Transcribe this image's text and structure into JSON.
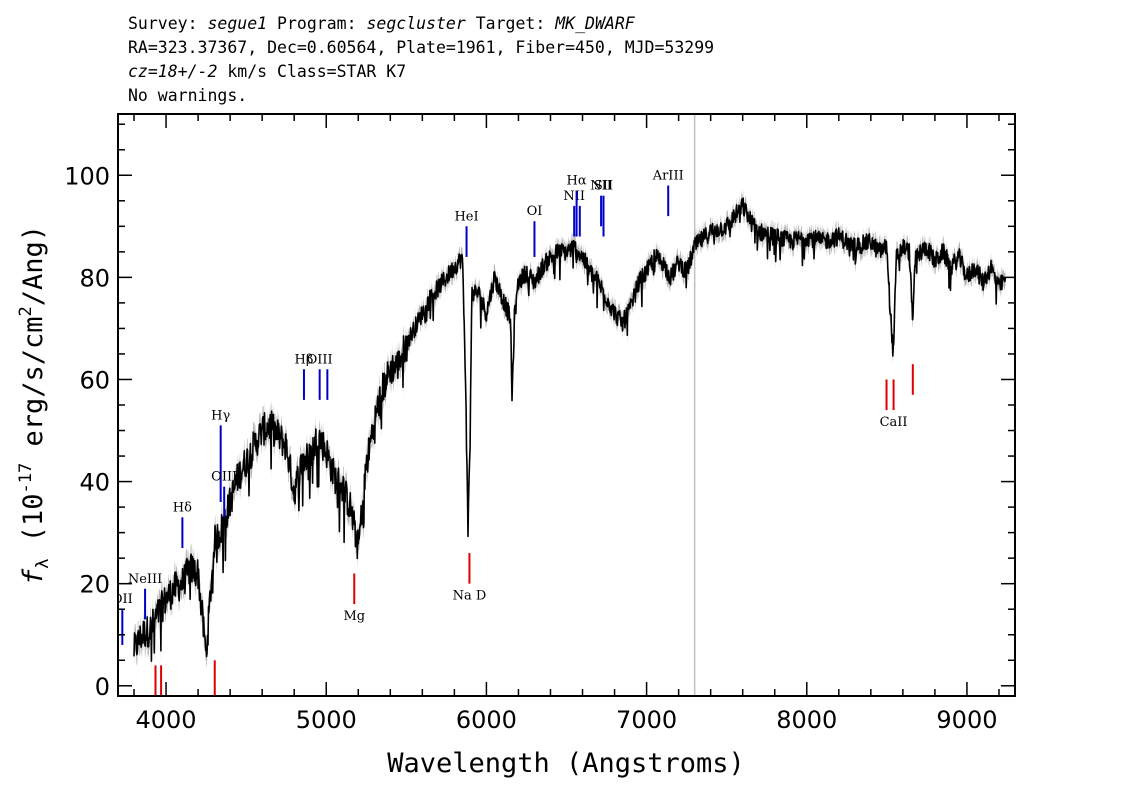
{
  "header": {
    "survey_key": "Survey:",
    "survey_value": "segue1",
    "program_key": "Program:",
    "program_value": "segcluster",
    "target_key": "Target:",
    "target_value": "MK_DWARF",
    "line2": "RA=323.37367, Dec=0.60564, Plate=1961, Fiber=450, MJD=53299",
    "cz_value": "cz=18+/-2",
    "cz_rest": " km/s Class=STAR K7",
    "line4": "No warnings."
  },
  "chart_data": {
    "type": "line",
    "xlabel": "Wavelength (Angstroms)",
    "ylabel_parts": [
      "f",
      "λ",
      " (10",
      "-17",
      " erg/s/cm",
      "2",
      "/Ang)"
    ],
    "xlim": [
      3700,
      9300
    ],
    "ylim": [
      -2,
      112
    ],
    "x_ticks": [
      4000,
      5000,
      6000,
      7000,
      8000,
      9000
    ],
    "y_ticks": [
      0,
      20,
      40,
      60,
      80,
      100
    ],
    "series_color": "#000000",
    "error_color": "#b4b4b4",
    "spectrum": [
      [
        3800,
        7
      ],
      [
        3850,
        10
      ],
      [
        3900,
        11
      ],
      [
        3950,
        14
      ],
      [
        4000,
        17
      ],
      [
        4050,
        19
      ],
      [
        4100,
        20
      ],
      [
        4150,
        23
      ],
      [
        4200,
        22
      ],
      [
        4250,
        6
      ],
      [
        4300,
        28
      ],
      [
        4350,
        31
      ],
      [
        4400,
        36
      ],
      [
        4450,
        41
      ],
      [
        4500,
        44
      ],
      [
        4550,
        47
      ],
      [
        4600,
        50
      ],
      [
        4650,
        51
      ],
      [
        4700,
        49
      ],
      [
        4750,
        47
      ],
      [
        4800,
        38
      ],
      [
        4850,
        44
      ],
      [
        4900,
        45
      ],
      [
        4950,
        49
      ],
      [
        5000,
        46
      ],
      [
        5050,
        41
      ],
      [
        5100,
        39
      ],
      [
        5150,
        35
      ],
      [
        5200,
        27
      ],
      [
        5250,
        43
      ],
      [
        5300,
        52
      ],
      [
        5350,
        58
      ],
      [
        5400,
        62
      ],
      [
        5450,
        63
      ],
      [
        5500,
        67
      ],
      [
        5550,
        70
      ],
      [
        5600,
        73
      ],
      [
        5650,
        76
      ],
      [
        5700,
        78
      ],
      [
        5750,
        80
      ],
      [
        5800,
        82
      ],
      [
        5850,
        84
      ],
      [
        5870,
        60
      ],
      [
        5885,
        30
      ],
      [
        5895,
        45
      ],
      [
        5910,
        77
      ],
      [
        5950,
        77
      ],
      [
        6000,
        73
      ],
      [
        6050,
        80
      ],
      [
        6100,
        76
      ],
      [
        6150,
        72
      ],
      [
        6160,
        56
      ],
      [
        6175,
        72
      ],
      [
        6200,
        79
      ],
      [
        6250,
        81
      ],
      [
        6300,
        79
      ],
      [
        6350,
        82
      ],
      [
        6400,
        84
      ],
      [
        6450,
        85
      ],
      [
        6500,
        85
      ],
      [
        6550,
        86
      ],
      [
        6600,
        84
      ],
      [
        6650,
        81
      ],
      [
        6700,
        79
      ],
      [
        6750,
        76
      ],
      [
        6800,
        73
      ],
      [
        6850,
        71
      ],
      [
        6900,
        74
      ],
      [
        6950,
        79
      ],
      [
        7000,
        81
      ],
      [
        7050,
        84
      ],
      [
        7100,
        83
      ],
      [
        7150,
        80
      ],
      [
        7200,
        83
      ],
      [
        7250,
        81
      ],
      [
        7300,
        86
      ],
      [
        7400,
        89
      ],
      [
        7500,
        90
      ],
      [
        7550,
        92
      ],
      [
        7600,
        94
      ],
      [
        7650,
        91
      ],
      [
        7700,
        89
      ],
      [
        7800,
        88
      ],
      [
        7900,
        87
      ],
      [
        8000,
        88
      ],
      [
        8100,
        87
      ],
      [
        8200,
        88
      ],
      [
        8300,
        86
      ],
      [
        8400,
        87
      ],
      [
        8450,
        85
      ],
      [
        8500,
        86
      ],
      [
        8520,
        74
      ],
      [
        8540,
        65
      ],
      [
        8560,
        84
      ],
      [
        8600,
        86
      ],
      [
        8640,
        85
      ],
      [
        8660,
        72
      ],
      [
        8680,
        84
      ],
      [
        8750,
        86
      ],
      [
        8800,
        83
      ],
      [
        8850,
        85
      ],
      [
        8900,
        82
      ],
      [
        8950,
        84
      ],
      [
        9000,
        80
      ],
      [
        9050,
        82
      ],
      [
        9100,
        79
      ],
      [
        9150,
        82
      ],
      [
        9200,
        78
      ],
      [
        9240,
        80
      ]
    ],
    "gap_line_x": 7300,
    "gap_line_color": "#c0c0c0",
    "emission_lines": [
      {
        "label": "OII",
        "x": 3727,
        "y0": 8,
        "y1": 15
      },
      {
        "label": "NeIII",
        "x": 3869,
        "y0": 13,
        "y1": 19
      },
      {
        "label": "Hδ",
        "x": 4102,
        "y0": 27,
        "y1": 33
      },
      {
        "label": "Hγ",
        "x": 4341,
        "y0": 36,
        "y1": 51
      },
      {
        "label": "OIII",
        "x": 4363,
        "y0": 33,
        "y1": 39
      },
      {
        "label": "Hβ",
        "x": 4861,
        "y0": 56,
        "y1": 62
      },
      {
        "label": "OIII",
        "x": 4959,
        "y0": 56,
        "y1": 62
      },
      {
        "label": "",
        "x": 5007,
        "y0": 56,
        "y1": 62
      },
      {
        "label": "HeI",
        "x": 5876,
        "y0": 84,
        "y1": 90
      },
      {
        "label": "OI",
        "x": 6300,
        "y0": 84,
        "y1": 91
      },
      {
        "label": "NII",
        "x": 6548,
        "y0": 88,
        "y1": 94
      },
      {
        "label": "Hα",
        "x": 6563,
        "y0": 88,
        "y1": 97
      },
      {
        "label": "",
        "x": 6583,
        "y0": 88,
        "y1": 94
      },
      {
        "label": "NII",
        "x": 6716,
        "y0": 90,
        "y1": 96
      },
      {
        "label": "SII",
        "x": 6731,
        "y0": 88,
        "y1": 96
      },
      {
        "label": "ArIII",
        "x": 7135,
        "y0": 92,
        "y1": 98
      }
    ],
    "absorption_lines": [
      {
        "label": "",
        "x": 3934,
        "y0": -2,
        "y1": 4
      },
      {
        "label": "",
        "x": 3969,
        "y0": -2,
        "y1": 4
      },
      {
        "label": "",
        "x": 4304,
        "y0": -2,
        "y1": 5
      },
      {
        "label": "Mg",
        "x": 5175,
        "y0": 16,
        "y1": 22
      },
      {
        "label": "Na D",
        "x": 5894,
        "y0": 20,
        "y1": 26
      },
      {
        "label": "",
        "x": 8498,
        "y0": 54,
        "y1": 60
      },
      {
        "label": "CaII",
        "x": 8542,
        "y0": 54,
        "y1": 60
      },
      {
        "label": "",
        "x": 8662,
        "y0": 57,
        "y1": 63
      }
    ],
    "emission_color": "#0000c8",
    "absorption_color": "#e00000"
  }
}
